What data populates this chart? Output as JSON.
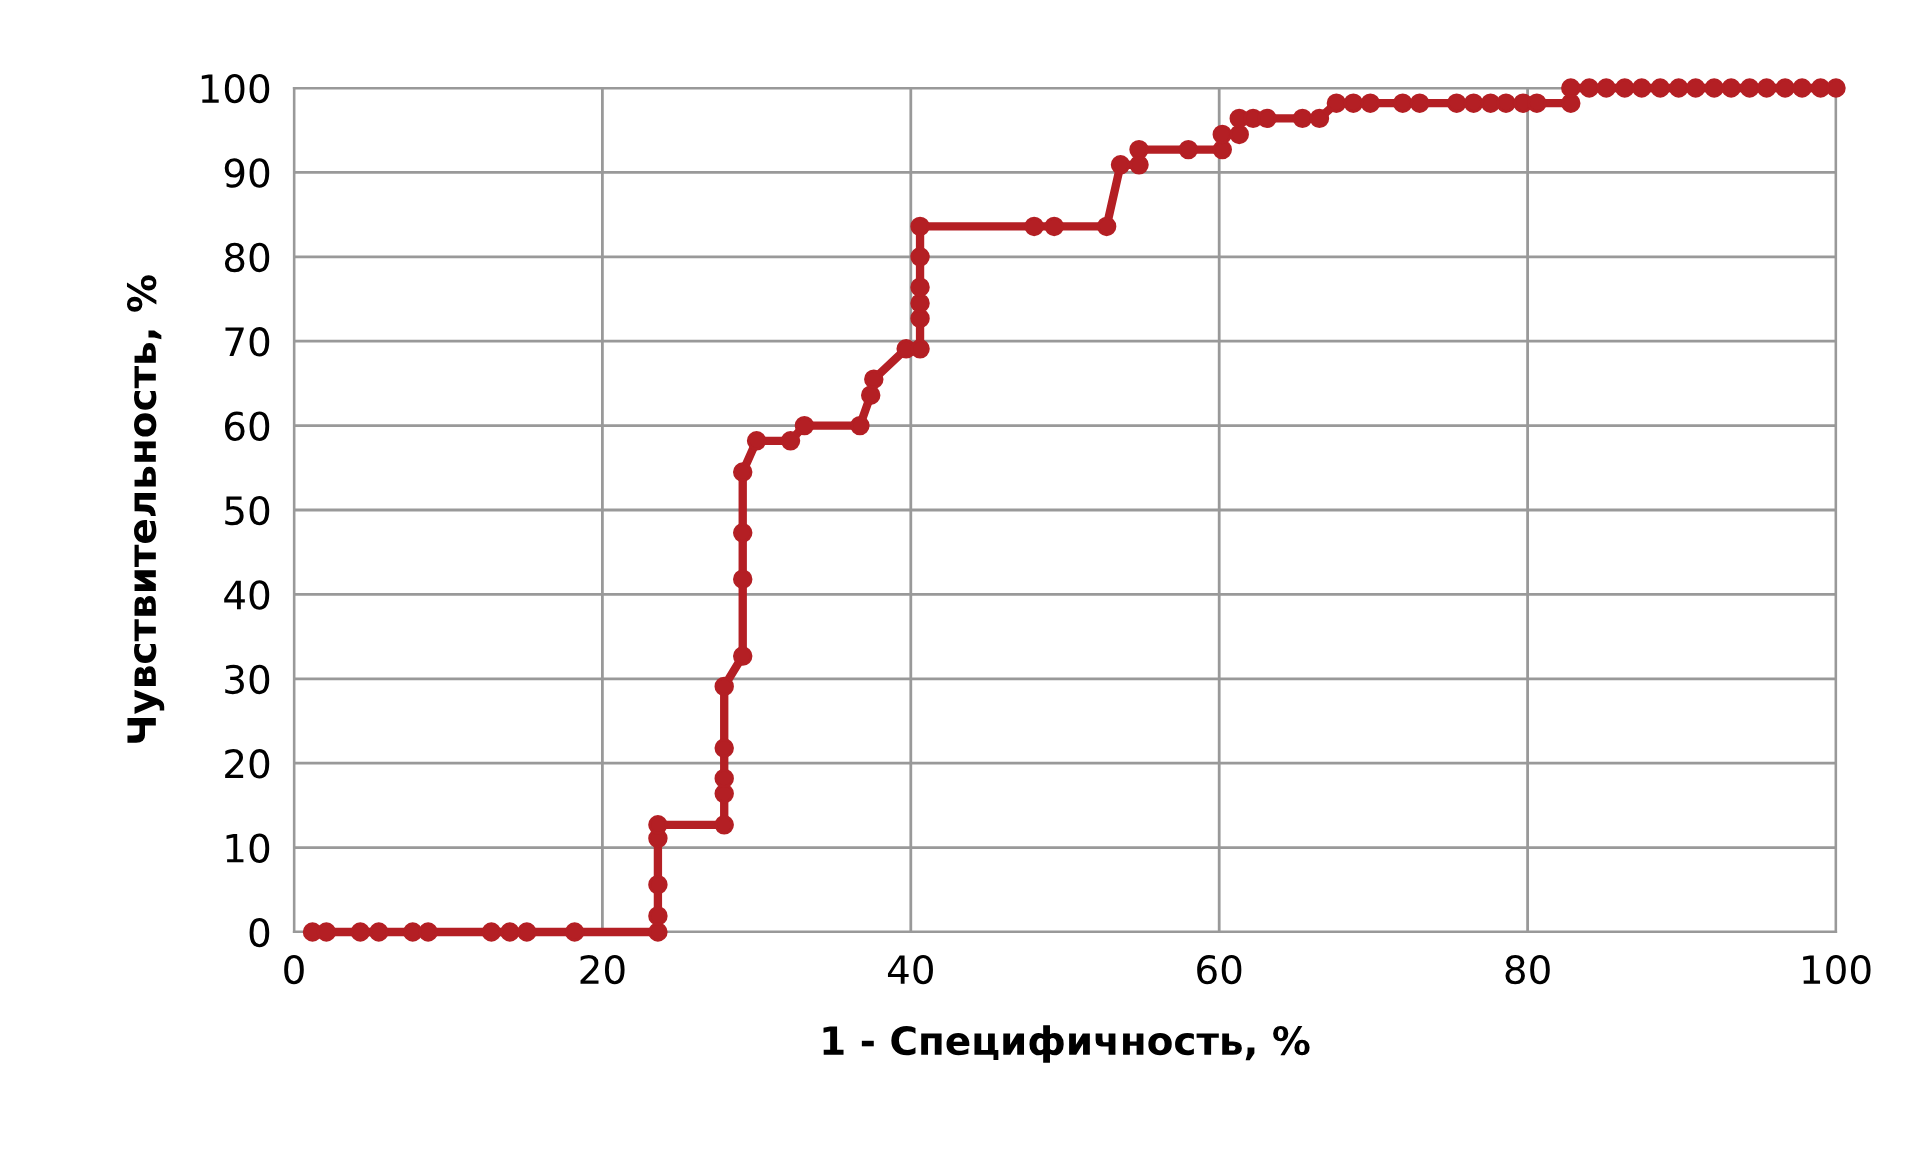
{
  "chart_data": {
    "type": "line",
    "xlabel": "1 - Специфичность, %",
    "ylabel": "Чувствительность, %",
    "xlim": [
      0,
      100
    ],
    "ylim": [
      0,
      100
    ],
    "xticks": [
      0,
      20,
      40,
      60,
      80,
      100
    ],
    "yticks": [
      0,
      10,
      20,
      30,
      40,
      50,
      60,
      70,
      80,
      90,
      100
    ],
    "grid": true,
    "marker": "circle",
    "line_style": "solid",
    "series": [
      {
        "color": "#b41f24",
        "x": [
          1.2,
          2.1,
          4.3,
          5.5,
          7.7,
          8.7,
          12.8,
          14.0,
          15.1,
          18.2,
          23.6,
          23.6,
          23.6,
          23.6,
          23.6,
          27.9,
          27.9,
          27.9,
          27.9,
          27.9,
          29.1,
          29.1,
          29.1,
          29.1,
          30.0,
          32.2,
          33.1,
          36.7,
          37.4,
          37.6,
          39.7,
          40.6,
          40.6,
          40.6,
          40.6,
          40.6,
          40.6,
          48.0,
          49.3,
          52.7,
          53.6,
          54.8,
          54.8,
          58.0,
          60.2,
          60.2,
          61.3,
          61.3,
          62.2,
          63.1,
          65.4,
          66.5,
          67.6,
          68.7,
          69.8,
          71.9,
          73.0,
          75.4,
          76.5,
          77.6,
          78.6,
          79.7,
          80.6,
          82.8,
          82.8,
          84.0,
          85.1,
          86.3,
          87.4,
          88.6,
          89.8,
          90.9,
          92.1,
          93.2,
          94.4,
          95.5,
          96.7,
          97.8,
          99.0,
          100
        ],
        "values": [
          0,
          0,
          0,
          0,
          0,
          0,
          0,
          0,
          0,
          0,
          0,
          1.9,
          5.6,
          11.1,
          12.7,
          12.7,
          16.4,
          18.2,
          21.8,
          29.1,
          32.7,
          41.8,
          47.3,
          54.5,
          58.2,
          58.2,
          60,
          60,
          63.6,
          65.5,
          69.1,
          69.1,
          72.7,
          74.5,
          76.4,
          80,
          83.6,
          83.6,
          83.6,
          83.6,
          90.9,
          90.9,
          92.7,
          92.7,
          92.7,
          94.5,
          94.5,
          96.4,
          96.4,
          96.4,
          96.4,
          96.4,
          98.2,
          98.2,
          98.2,
          98.2,
          98.2,
          98.2,
          98.2,
          98.2,
          98.2,
          98.2,
          98.2,
          98.2,
          100,
          100,
          100,
          100,
          100,
          100,
          100,
          100,
          100,
          100,
          100,
          100,
          100,
          100,
          100,
          100
        ]
      }
    ]
  }
}
